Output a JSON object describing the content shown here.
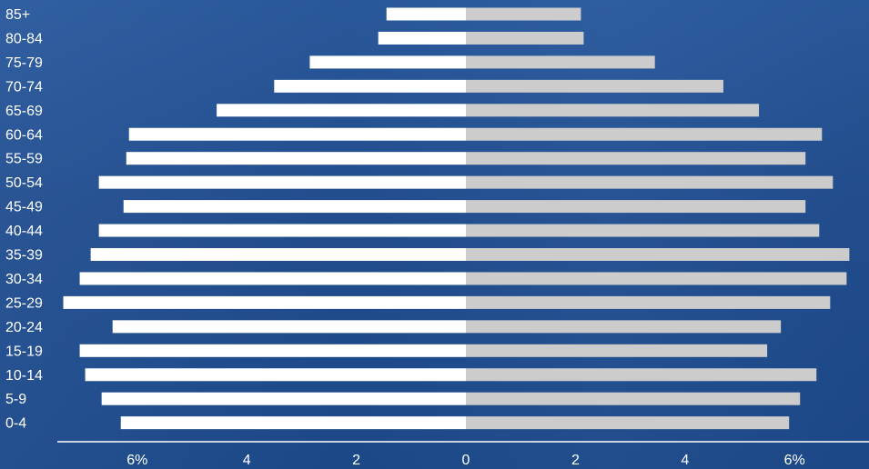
{
  "chart_data": {
    "type": "bar",
    "orientation": "horizontal",
    "layout": "population-pyramid",
    "categories": [
      "0-4",
      "5-9",
      "10-14",
      "15-19",
      "20-24",
      "25-29",
      "30-34",
      "35-39",
      "40-44",
      "45-49",
      "50-54",
      "55-59",
      "60-64",
      "65-69",
      "70-74",
      "75-79",
      "80-84",
      "85+"
    ],
    "series": [
      {
        "side": "left",
        "color": "#ffffff",
        "values": [
          6.3,
          6.65,
          6.95,
          7.05,
          6.45,
          7.35,
          7.05,
          6.85,
          6.7,
          6.25,
          6.7,
          6.2,
          6.15,
          4.55,
          3.5,
          2.85,
          1.6,
          1.45
        ]
      },
      {
        "side": "right",
        "color": "#cccccc",
        "values": [
          5.9,
          6.1,
          6.4,
          5.5,
          5.75,
          6.65,
          6.95,
          7.0,
          6.45,
          6.2,
          6.7,
          6.2,
          6.5,
          5.35,
          4.7,
          3.45,
          2.15,
          2.1
        ]
      }
    ],
    "xlim": [
      -7.4,
      7.4
    ],
    "xticks": [
      {
        "value": -6,
        "label": "6%"
      },
      {
        "value": -4,
        "label": "4"
      },
      {
        "value": -2,
        "label": "2"
      },
      {
        "value": 0,
        "label": "0"
      },
      {
        "value": 2,
        "label": "2"
      },
      {
        "value": 4,
        "label": "4"
      },
      {
        "value": 6,
        "label": "6%"
      }
    ],
    "title": "",
    "xlabel": "",
    "ylabel": "",
    "grid": false,
    "legend": "none"
  }
}
